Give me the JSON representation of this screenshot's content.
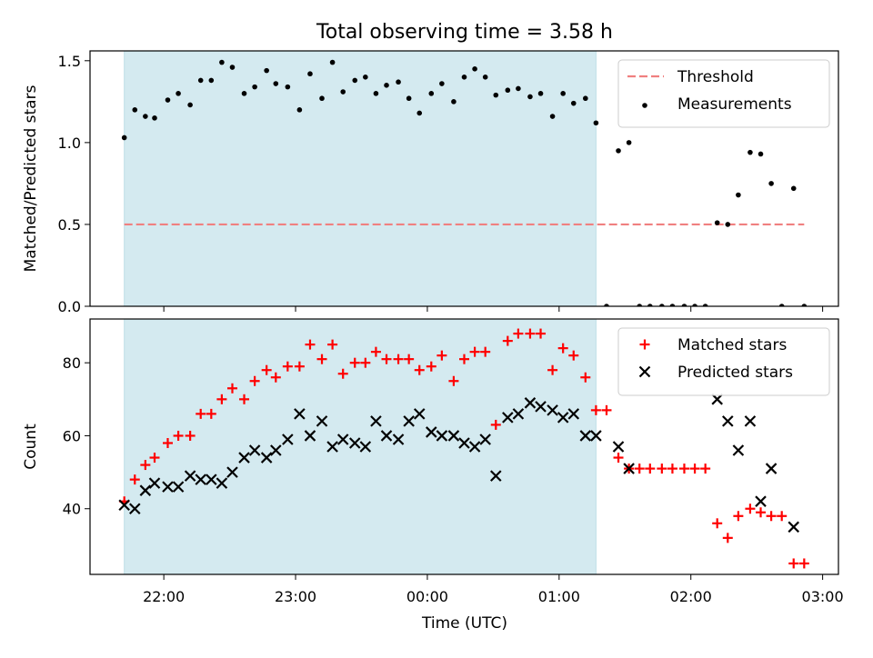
{
  "title": "Total observing time = 3.58 h",
  "xlabel": "Time (UTC)",
  "x_ticks": [
    {
      "t": 22.0,
      "label": "22:00"
    },
    {
      "t": 23.0,
      "label": "23:00"
    },
    {
      "t": 24.0,
      "label": "00:00"
    },
    {
      "t": 25.0,
      "label": "01:00"
    },
    {
      "t": 26.0,
      "label": "02:00"
    },
    {
      "t": 27.0,
      "label": "03:00"
    }
  ],
  "shaded_window": {
    "start": 21.7,
    "end": 25.28,
    "color": "#d4eaf0"
  },
  "chart_data": [
    {
      "type": "scatter",
      "ylabel": "Matched/Predicted stars",
      "xlim": [
        21.44,
        27.12
      ],
      "ylim": [
        0,
        1.56
      ],
      "yticks": [
        {
          "v": 0.0,
          "label": "0.0"
        },
        {
          "v": 0.5,
          "label": "0.5"
        },
        {
          "v": 1.0,
          "label": "1.0"
        },
        {
          "v": 1.5,
          "label": "1.5"
        }
      ],
      "threshold": {
        "name": "Threshold",
        "value": 0.5,
        "x_range": [
          21.7,
          27.2
        ],
        "color": "#f08080"
      },
      "legend": {
        "placement": "top-right",
        "items": [
          "Threshold",
          "Measurements"
        ]
      },
      "series": [
        {
          "name": "Measurements",
          "color": "#000000",
          "marker": "dot",
          "x": [
            21.7,
            21.78,
            21.86,
            21.93,
            22.03,
            22.11,
            22.2,
            22.28,
            22.36,
            22.44,
            22.52,
            22.61,
            22.69,
            22.78,
            22.85,
            22.94,
            23.03,
            23.11,
            23.2,
            23.28,
            23.36,
            23.45,
            23.53,
            23.61,
            23.69,
            23.78,
            23.86,
            23.94,
            24.03,
            24.11,
            24.2,
            24.28,
            24.36,
            24.44,
            24.52,
            24.61,
            24.69,
            24.78,
            24.86,
            24.95,
            25.03,
            25.11,
            25.2,
            25.28,
            25.36,
            25.45,
            25.53,
            25.61,
            25.69,
            25.78,
            25.86,
            25.95,
            26.03,
            26.11,
            26.2,
            26.28,
            26.36,
            26.45,
            26.53,
            26.61,
            26.69,
            26.78,
            26.86
          ],
          "y": [
            1.03,
            1.2,
            1.16,
            1.15,
            1.26,
            1.3,
            1.23,
            1.38,
            1.38,
            1.49,
            1.46,
            1.3,
            1.34,
            1.44,
            1.36,
            1.34,
            1.2,
            1.42,
            1.27,
            1.49,
            1.31,
            1.38,
            1.4,
            1.3,
            1.35,
            1.37,
            1.27,
            1.18,
            1.3,
            1.36,
            1.25,
            1.4,
            1.45,
            1.4,
            1.29,
            1.32,
            1.33,
            1.28,
            1.3,
            1.16,
            1.3,
            1.24,
            1.27,
            1.12,
            0.0,
            0.95,
            1.0,
            0.0,
            0.0,
            0.0,
            0.0,
            0.0,
            0.0,
            0.0,
            0.51,
            0.5,
            0.68,
            0.94,
            0.93,
            0.75,
            0.0,
            0.72,
            0.0
          ]
        }
      ]
    },
    {
      "type": "scatter",
      "ylabel": "Count",
      "xlim": [
        21.44,
        27.12
      ],
      "ylim": [
        22,
        92
      ],
      "yticks": [
        {
          "v": 40,
          "label": "40"
        },
        {
          "v": 60,
          "label": "60"
        },
        {
          "v": 80,
          "label": "80"
        }
      ],
      "legend": {
        "placement": "top-right",
        "items": [
          "Matched stars",
          "Predicted stars"
        ]
      },
      "series": [
        {
          "name": "Matched stars",
          "color": "#ff0000",
          "marker": "plus",
          "x": [
            21.7,
            21.78,
            21.86,
            21.93,
            22.03,
            22.11,
            22.2,
            22.28,
            22.36,
            22.44,
            22.52,
            22.61,
            22.69,
            22.78,
            22.85,
            22.94,
            23.03,
            23.11,
            23.2,
            23.28,
            23.36,
            23.45,
            23.53,
            23.61,
            23.69,
            23.78,
            23.86,
            23.94,
            24.03,
            24.11,
            24.2,
            24.28,
            24.36,
            24.44,
            24.52,
            24.61,
            24.69,
            24.78,
            24.86,
            24.95,
            25.03,
            25.11,
            25.2,
            25.28,
            25.36,
            25.45,
            25.53,
            25.61,
            25.69,
            25.78,
            25.86,
            25.95,
            26.03,
            26.11,
            26.2,
            26.28,
            26.36,
            26.45,
            26.53,
            26.61,
            26.69,
            26.78,
            26.86
          ],
          "y": [
            42,
            48,
            52,
            54,
            58,
            60,
            60,
            66,
            66,
            70,
            73,
            70,
            75,
            78,
            76,
            79,
            79,
            85,
            81,
            85,
            77,
            80,
            80,
            83,
            81,
            81,
            81,
            78,
            79,
            82,
            75,
            81,
            83,
            83,
            63,
            86,
            88,
            88,
            88,
            78,
            84,
            82,
            76,
            67,
            67,
            54,
            51,
            51,
            51,
            51,
            51,
            51,
            51,
            51,
            36,
            32,
            38,
            40,
            39,
            38,
            38,
            25,
            25
          ]
        },
        {
          "name": "Predicted stars",
          "color": "#000000",
          "marker": "x",
          "x": [
            21.7,
            21.78,
            21.86,
            21.93,
            22.03,
            22.11,
            22.2,
            22.28,
            22.36,
            22.44,
            22.52,
            22.61,
            22.69,
            22.78,
            22.85,
            22.94,
            23.03,
            23.11,
            23.2,
            23.28,
            23.36,
            23.45,
            23.53,
            23.61,
            23.69,
            23.78,
            23.86,
            23.94,
            24.03,
            24.11,
            24.2,
            24.28,
            24.36,
            24.44,
            24.52,
            24.61,
            24.69,
            24.78,
            24.86,
            24.95,
            25.03,
            25.11,
            25.2,
            25.28,
            25.45,
            25.53,
            26.2,
            26.28,
            26.36,
            26.45,
            26.53,
            26.61,
            26.78
          ],
          "y": [
            41,
            40,
            45,
            47,
            46,
            46,
            49,
            48,
            48,
            47,
            50,
            54,
            56,
            54,
            56,
            59,
            66,
            60,
            64,
            57,
            59,
            58,
            57,
            64,
            60,
            59,
            64,
            66,
            61,
            60,
            60,
            58,
            57,
            59,
            49,
            65,
            66,
            69,
            68,
            67,
            65,
            66,
            60,
            60,
            57,
            51,
            70,
            64,
            56,
            64,
            42,
            51,
            35
          ]
        }
      ]
    }
  ]
}
